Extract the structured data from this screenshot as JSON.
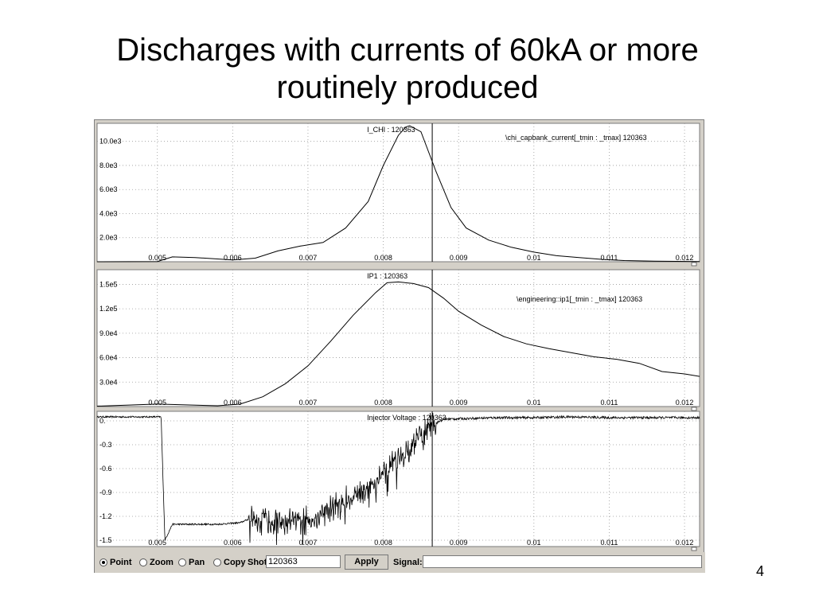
{
  "slide": {
    "title_line1": "Discharges with currents of 60kA or more",
    "title_line2": "routinely produced",
    "page_number": "4"
  },
  "toolbar": {
    "mode_options": [
      {
        "label": "Point",
        "selected": true
      },
      {
        "label": "Zoom",
        "selected": false
      },
      {
        "label": "Pan",
        "selected": false
      },
      {
        "label": "Copy",
        "selected": false
      }
    ],
    "shot_label": "Shot",
    "shot_value": "120363",
    "apply_label": "Apply",
    "signal_label": "Signal:",
    "signal_value": ""
  },
  "chart_data": [
    {
      "type": "line",
      "legend": "I_CHI  :  120363",
      "expression": "\\chi_capbank_current[_tmin : _tmax] 120363",
      "xlim": [
        0.0042,
        0.0122
      ],
      "ylim": [
        0,
        11500
      ],
      "x_ticks": [
        "0.005",
        "0.006",
        "0.007",
        "0.008",
        "0.009",
        "0.01",
        "0.011",
        "0.012"
      ],
      "y_ticks": [
        {
          "v": 2000,
          "label": "2.0e3"
        },
        {
          "v": 4000,
          "label": "4.0e3"
        },
        {
          "v": 6000,
          "label": "6.0e3"
        },
        {
          "v": 8000,
          "label": "8.0e3"
        },
        {
          "v": 10000,
          "label": "10.0e3"
        }
      ],
      "series": [
        {
          "x": [
            0.0042,
            0.005,
            0.0052,
            0.0055,
            0.006,
            0.0063,
            0.0066,
            0.0069,
            0.0072,
            0.0075,
            0.0078,
            0.008,
            0.0082,
            0.0083,
            0.00835,
            0.0085,
            0.0087,
            0.0089,
            0.0091,
            0.0094,
            0.0097,
            0.01,
            0.0103,
            0.0106,
            0.0109,
            0.0112,
            0.0116,
            0.0119,
            0.0122
          ],
          "y": [
            0,
            20,
            400,
            350,
            150,
            300,
            900,
            1300,
            1600,
            2800,
            5000,
            8000,
            10500,
            11200,
            11300,
            10800,
            7500,
            4500,
            2800,
            1800,
            1200,
            800,
            500,
            350,
            200,
            100,
            50,
            30,
            20
          ]
        }
      ]
    },
    {
      "type": "line",
      "legend": "IP1  :  120363",
      "expression": "\\engineering::ip1[_tmin : _tmax] 120363",
      "xlim": [
        0.0042,
        0.0122
      ],
      "ylim": [
        0,
        168000
      ],
      "x_ticks": [
        "0.005",
        "0.006",
        "0.007",
        "0.008",
        "0.009",
        "0.01",
        "0.011",
        "0.012"
      ],
      "y_ticks": [
        {
          "v": 30000,
          "label": "3.0e4"
        },
        {
          "v": 60000,
          "label": "6.0e4"
        },
        {
          "v": 90000,
          "label": "9.0e4"
        },
        {
          "v": 120000,
          "label": "1.2e5"
        },
        {
          "v": 150000,
          "label": "1.5e5"
        }
      ],
      "series": [
        {
          "x": [
            0.0042,
            0.005,
            0.0058,
            0.0061,
            0.0064,
            0.0067,
            0.007,
            0.0073,
            0.0076,
            0.0079,
            0.00805,
            0.0082,
            0.0084,
            0.0086,
            0.0088,
            0.009,
            0.0093,
            0.0096,
            0.0099,
            0.0102,
            0.0105,
            0.0108,
            0.0111,
            0.0114,
            0.0117,
            0.012,
            0.0122
          ],
          "y": [
            500,
            3000,
            1000,
            3000,
            12000,
            28000,
            50000,
            80000,
            112000,
            140000,
            152000,
            153000,
            151000,
            146000,
            133000,
            117000,
            100000,
            86000,
            77000,
            71000,
            66000,
            61000,
            58000,
            53000,
            43000,
            40000,
            37000
          ]
        }
      ]
    },
    {
      "type": "line",
      "legend": "Injector Voltage  :  120363",
      "xlim": [
        0.0042,
        0.0122
      ],
      "ylim": [
        -1.58,
        0.12
      ],
      "x_ticks": [
        "0.005",
        "0.006",
        "0.007",
        "0.008",
        "0.009",
        "0.01",
        "0.011",
        "0.012"
      ],
      "y_ticks": [
        {
          "v": 0,
          "label": "0."
        },
        {
          "v": -0.3,
          "label": "-0.3"
        },
        {
          "v": -0.6,
          "label": "-0.6"
        },
        {
          "v": -0.9,
          "label": "-0.9"
        },
        {
          "v": -1.2,
          "label": "-1.2"
        },
        {
          "v": -1.5,
          "label": "-1.5"
        }
      ],
      "series": [
        {
          "x": [
            0.0042,
            0.0049,
            0.00505,
            0.0051,
            0.0052,
            0.0058,
            0.0061,
            0.00625,
            0.0065,
            0.0068,
            0.0071,
            0.0073,
            0.0076,
            0.0079,
            0.0082,
            0.0084,
            0.0086,
            0.0088,
            0.0091,
            0.0095,
            0.01,
            0.0105,
            0.011,
            0.0115,
            0.0122
          ],
          "y": [
            0.05,
            0.05,
            0.05,
            -1.5,
            -1.3,
            -1.3,
            -1.28,
            -1.22,
            -1.24,
            -1.28,
            -1.22,
            -1.1,
            -0.95,
            -0.75,
            -0.5,
            -0.3,
            -0.08,
            0.02,
            0.03,
            0.04,
            0.04,
            0.05,
            0.04,
            0.04,
            0.04
          ]
        }
      ]
    }
  ]
}
